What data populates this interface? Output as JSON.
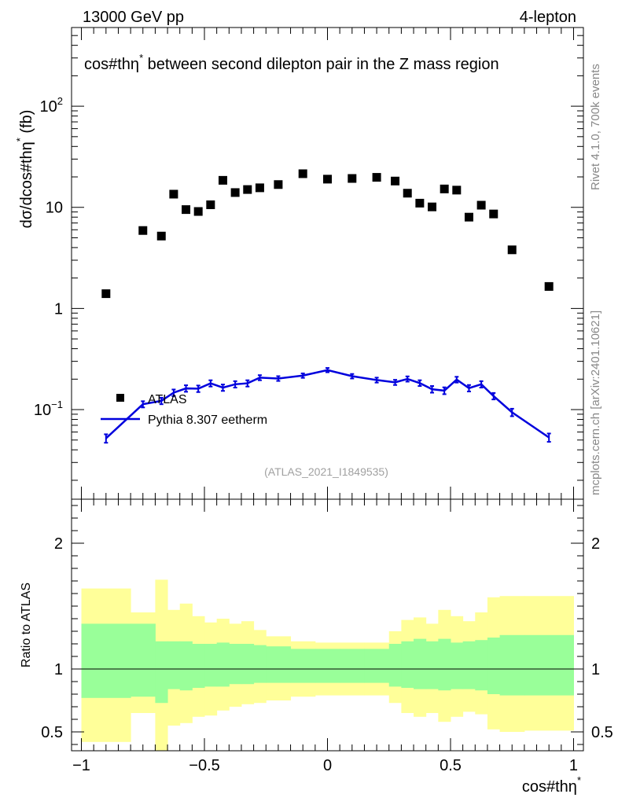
{
  "header": {
    "left_label": "13000 GeV pp",
    "right_label": "4-lepton"
  },
  "side_labels": {
    "rivet": "Rivet 4.1.0,  700k events",
    "source": "mcplots.cern.ch [arXiv:2401.10621]"
  },
  "chart_data": [
    {
      "type": "scatter",
      "title": "cos#thη* between second dilepton pair in the Z mass region",
      "title_main": "cos#thη",
      "title_sup": "*",
      "title_rest": " between second dilepton pair in the Z mass region",
      "ylabel_main": "dσ/dcos#thη",
      "ylabel_sup": "*",
      "ylabel_rest": " (fb)",
      "yscale": "log",
      "ylim": [
        0.013,
        600
      ],
      "xlim": [
        -1.04,
        1.04
      ],
      "yticks": [
        {
          "v": 0.1,
          "m": "10",
          "e": "−1"
        },
        {
          "v": 1,
          "m": "1",
          "e": ""
        },
        {
          "v": 10,
          "m": "10",
          "e": ""
        },
        {
          "v": 100,
          "m": "10",
          "e": "2"
        }
      ],
      "watermark": "(ATLAS_2021_I1849535)",
      "legend": [
        {
          "label": "ATLAS",
          "style": "marker"
        },
        {
          "label": "Pythia 8.307 eetherm",
          "style": "line"
        }
      ],
      "series": [
        {
          "name": "ATLAS",
          "x": [
            -0.9,
            -0.75,
            -0.675,
            -0.625,
            -0.575,
            -0.525,
            -0.475,
            -0.425,
            -0.375,
            -0.325,
            -0.275,
            -0.2,
            -0.1,
            0.0,
            0.1,
            0.2,
            0.275,
            0.325,
            0.375,
            0.425,
            0.475,
            0.525,
            0.575,
            0.625,
            0.675,
            0.75,
            0.9
          ],
          "y": [
            1.4,
            5.9,
            5.2,
            13.5,
            9.5,
            9.1,
            10.6,
            18.5,
            14.0,
            15.0,
            15.6,
            16.8,
            21.5,
            19.0,
            19.3,
            19.8,
            18.2,
            13.8,
            11.0,
            10.1,
            15.2,
            14.8,
            8.0,
            10.5,
            8.6,
            3.8,
            1.65
          ]
        },
        {
          "name": "Pythia 8.307 eetherm",
          "x": [
            -0.9,
            -0.75,
            -0.675,
            -0.625,
            -0.575,
            -0.525,
            -0.475,
            -0.425,
            -0.375,
            -0.325,
            -0.275,
            -0.2,
            -0.1,
            0.0,
            0.1,
            0.2,
            0.275,
            0.325,
            0.375,
            0.425,
            0.475,
            0.525,
            0.575,
            0.625,
            0.675,
            0.75,
            0.9
          ],
          "y": [
            0.052,
            0.113,
            0.122,
            0.147,
            0.162,
            0.161,
            0.182,
            0.165,
            0.178,
            0.182,
            0.207,
            0.203,
            0.217,
            0.246,
            0.214,
            0.196,
            0.186,
            0.201,
            0.183,
            0.159,
            0.154,
            0.198,
            0.163,
            0.178,
            0.136,
            0.094,
            0.053
          ],
          "err": [
            0.005,
            0.008,
            0.009,
            0.011,
            0.012,
            0.012,
            0.013,
            0.012,
            0.013,
            0.013,
            0.012,
            0.011,
            0.011,
            0.012,
            0.011,
            0.011,
            0.011,
            0.012,
            0.012,
            0.012,
            0.012,
            0.013,
            0.012,
            0.013,
            0.01,
            0.008,
            0.005
          ]
        }
      ]
    },
    {
      "type": "area",
      "title": "",
      "ylabel": "Ratio to ATLAS",
      "xlabel_main": "cos#thη",
      "xlabel_sup": "*",
      "ylim": [
        0.35,
        2.35
      ],
      "xlim": [
        -1.04,
        1.04
      ],
      "yticks": [
        0.5,
        1,
        2
      ],
      "xticks": [
        {
          "v": -1,
          "l": "−1"
        },
        {
          "v": -0.5,
          "l": "−0.5"
        },
        {
          "v": 0,
          "l": "0"
        },
        {
          "v": 0.5,
          "l": "0.5"
        },
        {
          "v": 1,
          "l": "1"
        }
      ],
      "reference_line": 1,
      "bin_edges": [
        -1.0,
        -0.8,
        -0.7,
        -0.65,
        -0.6,
        -0.55,
        -0.5,
        -0.45,
        -0.4,
        -0.35,
        -0.3,
        -0.25,
        -0.15,
        -0.05,
        0.05,
        0.15,
        0.25,
        0.3,
        0.35,
        0.4,
        0.45,
        0.5,
        0.55,
        0.6,
        0.65,
        0.7,
        0.8,
        1.0
      ],
      "bands": [
        {
          "name": "outer uncertainty (yellow)",
          "low": [
            0.42,
            0.65,
            0.3,
            0.55,
            0.57,
            0.62,
            0.63,
            0.67,
            0.7,
            0.72,
            0.73,
            0.75,
            0.78,
            0.79,
            0.79,
            0.79,
            0.73,
            0.65,
            0.62,
            0.65,
            0.58,
            0.62,
            0.66,
            0.64,
            0.52,
            0.5,
            0.51
          ],
          "high": [
            1.64,
            1.45,
            1.71,
            1.47,
            1.52,
            1.42,
            1.37,
            1.4,
            1.36,
            1.38,
            1.31,
            1.26,
            1.22,
            1.21,
            1.21,
            1.21,
            1.3,
            1.39,
            1.41,
            1.36,
            1.47,
            1.42,
            1.38,
            1.45,
            1.57,
            1.58,
            1.58
          ]
        },
        {
          "name": "inner uncertainty (green)",
          "low": [
            0.77,
            0.78,
            0.73,
            0.84,
            0.83,
            0.85,
            0.86,
            0.86,
            0.88,
            0.88,
            0.89,
            0.89,
            0.89,
            0.89,
            0.89,
            0.89,
            0.86,
            0.85,
            0.84,
            0.84,
            0.83,
            0.84,
            0.84,
            0.83,
            0.8,
            0.79,
            0.79
          ],
          "high": [
            1.36,
            1.36,
            1.22,
            1.22,
            1.22,
            1.2,
            1.2,
            1.21,
            1.2,
            1.2,
            1.19,
            1.18,
            1.16,
            1.16,
            1.16,
            1.16,
            1.2,
            1.22,
            1.24,
            1.22,
            1.24,
            1.21,
            1.22,
            1.23,
            1.25,
            1.27,
            1.27
          ]
        }
      ]
    }
  ],
  "colors": {
    "yellow_band": "#ffff99",
    "green_band": "#99ff99",
    "mc_line": "#0000dd",
    "data_marker": "#000000",
    "side_text": "#888888"
  }
}
